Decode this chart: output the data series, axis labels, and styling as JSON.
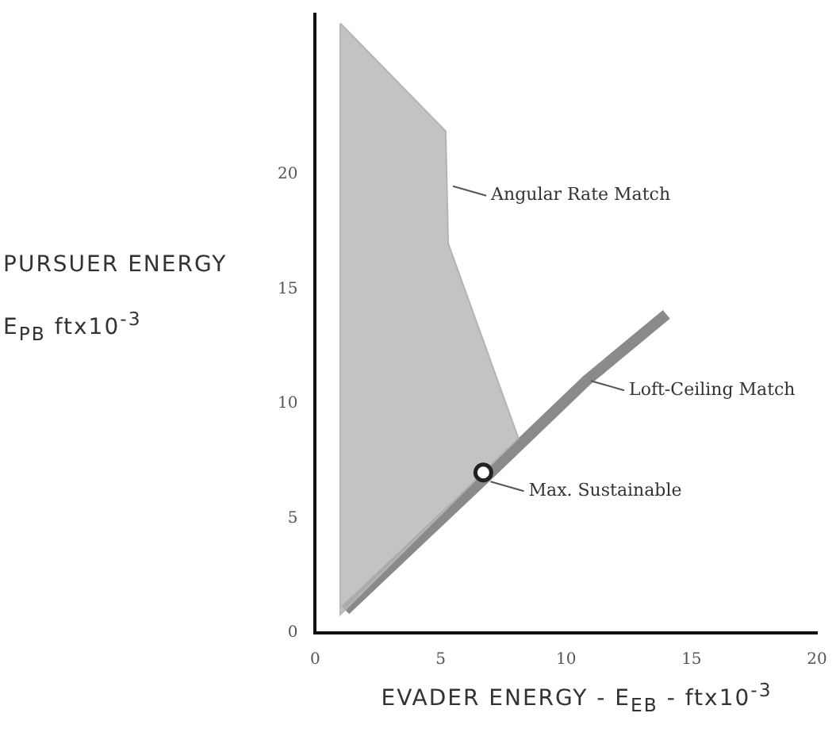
{
  "chart_data": {
    "type": "line",
    "xlabel": "EVADER  ENERGY - E$_{EB}$ - ftx10$^{-3}$",
    "ylabel": "PURSUER  ENERGY E$_{PB}$ ftx10$^{-3}$",
    "xlim": [
      0,
      20
    ],
    "xticks": [
      0,
      5,
      10,
      15,
      20
    ],
    "ylim": [
      0,
      27
    ],
    "yticks": [
      0,
      5,
      10,
      15,
      20
    ],
    "grid": false,
    "legend": false,
    "series": [
      {
        "type": "area",
        "color": "#b4b4b4",
        "x": [
          1.0,
          5.2,
          5.3,
          8.1,
          6.5,
          1.0,
          1.0
        ],
        "values": [
          26.6,
          21.9,
          17.0,
          8.5,
          6.8,
          0.8,
          26.6
        ]
      },
      {
        "type": "line",
        "color": "#8a8a8a",
        "x": [
          1.2,
          6.8,
          10.8,
          14.0
        ],
        "values": [
          1.0,
          6.8,
          11.0,
          13.9
        ]
      },
      {
        "type": "scatter",
        "color": "#222222",
        "marker": "circle",
        "x": [
          6.7
        ],
        "values": [
          7.0
        ]
      }
    ],
    "annotations": [
      {
        "text": "Angular Rate Match",
        "x": 5.3,
        "y": 19.5
      },
      {
        "text": "Loft-Ceiling Match",
        "x": 10.8,
        "y": 11.0
      },
      {
        "text": "Max. Sustainable",
        "x": 6.8,
        "y": 6.6
      }
    ]
  }
}
